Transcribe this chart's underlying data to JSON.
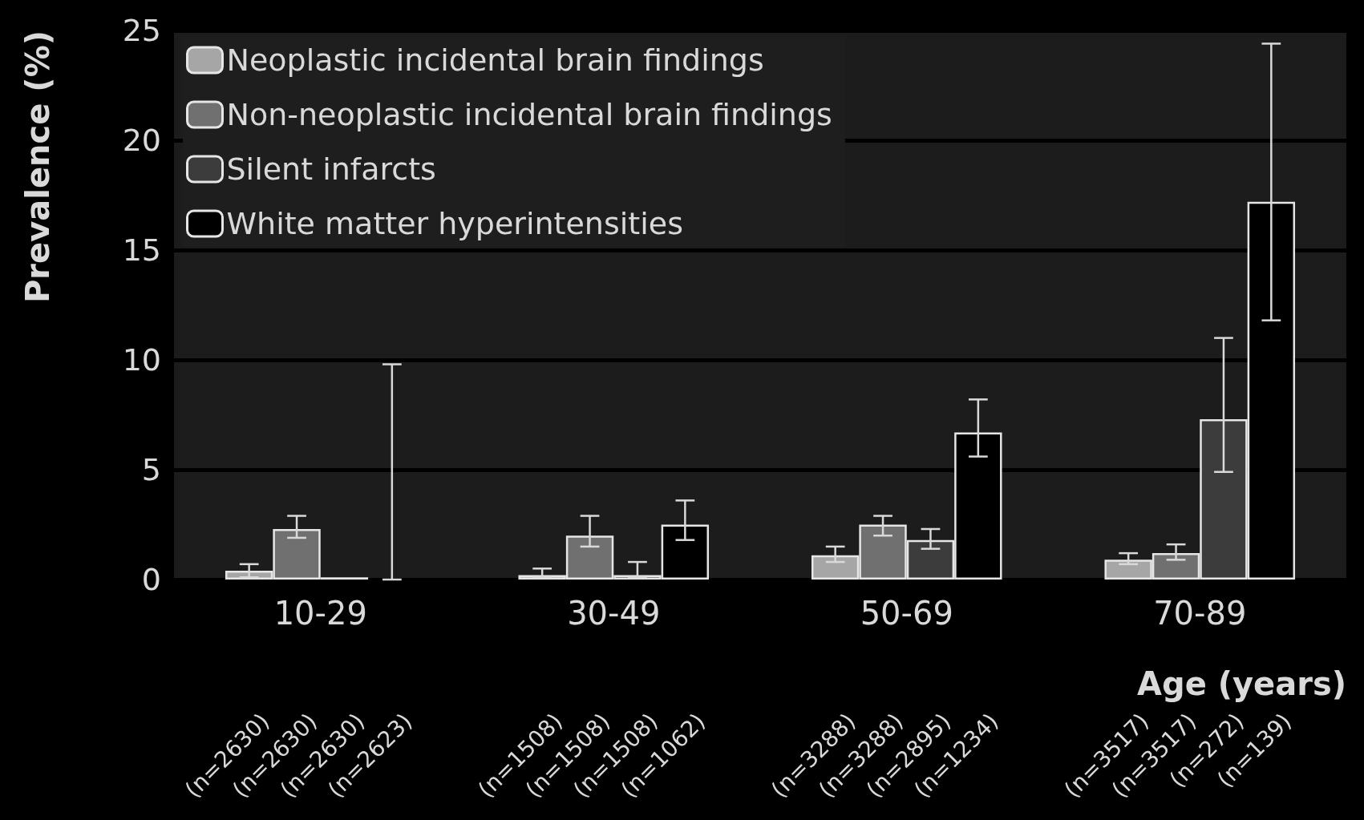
{
  "chart_data": {
    "type": "bar",
    "ylabel": "Prevalence (%)",
    "xlabel": "Age (years)",
    "categories": [
      "10-29",
      "30-49",
      "50-69",
      "70-89"
    ],
    "series": [
      {
        "name": "Neoplastic incidental brain findings",
        "color": "#a6a6a6",
        "values": [
          0.4,
          0.2,
          1.1,
          0.9
        ],
        "errors": [
          [
            0.1,
            0.7
          ],
          [
            0.1,
            0.5
          ],
          [
            0.8,
            1.5
          ],
          [
            0.7,
            1.2
          ]
        ]
      },
      {
        "name": "Non-neoplastic incidental brain findings",
        "color": "#707070",
        "values": [
          2.3,
          2.0,
          2.5,
          1.2
        ],
        "errors": [
          [
            1.9,
            2.9
          ],
          [
            1.5,
            2.9
          ],
          [
            2.0,
            2.9
          ],
          [
            0.9,
            1.6
          ]
        ]
      },
      {
        "name": "Silent infarcts",
        "color": "#3c3c3c",
        "values": [
          0.1,
          0.2,
          1.8,
          7.3
        ],
        "errors": [
          null,
          [
            0.1,
            0.8
          ],
          [
            1.4,
            2.3
          ],
          [
            4.9,
            11.0
          ]
        ]
      },
      {
        "name": "White matter hyperintensities",
        "color": "#000000",
        "values": [
          0,
          2.5,
          6.7,
          17.2
        ],
        "errors": [
          [
            0,
            9.8
          ],
          [
            1.8,
            3.6
          ],
          [
            5.6,
            8.2
          ],
          [
            11.8,
            24.4
          ]
        ]
      }
    ],
    "annotations": [
      "(n=2630)",
      "(n=2630)",
      "(n=2630)",
      "(n=2623)",
      "(n=1508)",
      "(n=1508)",
      "(n=1508)",
      "(n=1062)",
      "(n=3288)",
      "(n=3288)",
      "(n=2895)",
      "(n=1234)",
      "(n=3517)",
      "(n=3517)",
      "(n=272)",
      "(n=139)"
    ],
    "ylim": [
      0,
      25
    ],
    "yticks": [
      0,
      5,
      10,
      15,
      20,
      25
    ],
    "grid": "y",
    "legend": "top left"
  }
}
